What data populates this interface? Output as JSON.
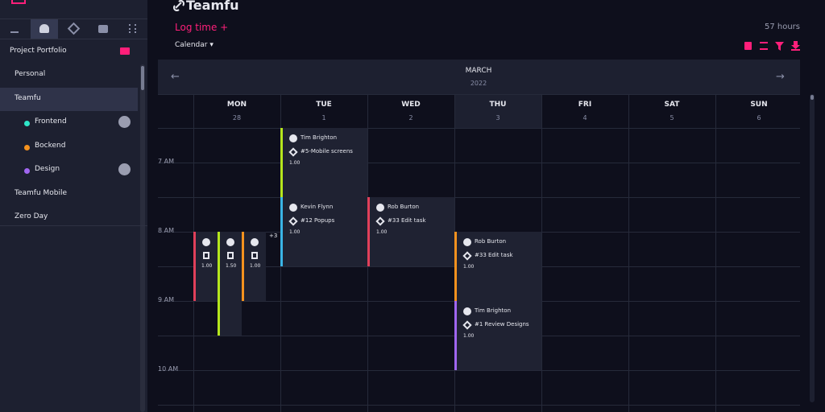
{
  "sidebar": {
    "section_title": "Project Portfolio",
    "projects": [
      {
        "label": "Personal"
      },
      {
        "label": "Teamfu",
        "children": [
          {
            "label": "Frontend",
            "color": "#2ee6c8",
            "avatar": true
          },
          {
            "label": "Bockend",
            "color": "#f5921e",
            "avatar": false
          },
          {
            "label": "Design",
            "color": "#a066f0",
            "avatar": true
          }
        ]
      },
      {
        "label": "Teamfu Mobile"
      },
      {
        "label": "Zero Day"
      }
    ]
  },
  "header": {
    "title": "Teamfu",
    "log_time": "Log time +",
    "total": "57 hours",
    "view": "Calendar"
  },
  "calendar": {
    "month": "MARCH",
    "year": "2022",
    "days": [
      {
        "name": "MON",
        "date": "28"
      },
      {
        "name": "TUE",
        "date": "1"
      },
      {
        "name": "WED",
        "date": "2"
      },
      {
        "name": "THU",
        "date": "3"
      },
      {
        "name": "FRI",
        "date": "4"
      },
      {
        "name": "SAT",
        "date": "5"
      },
      {
        "name": "SUN",
        "date": "6"
      }
    ],
    "hours": [
      "7 AM",
      "8 AM",
      "9 AM",
      "10 AM"
    ],
    "more": "+3",
    "events": [
      {
        "person": "Tim Brighton",
        "task": "#5-Mobile screens",
        "hours": "1.00",
        "color": "#b5e61d"
      },
      {
        "person": "Kevin Flynn",
        "task": "#12 Popups",
        "hours": "1.00",
        "color": "#3ab4e6"
      },
      {
        "person": "Rob Burton",
        "task": "#33 Edit task",
        "hours": "1.00",
        "color": "#e0405a"
      },
      {
        "hours": "1.00",
        "color": "#e0405a"
      },
      {
        "hours": "1.50",
        "color": "#b5e61d"
      },
      {
        "hours": "1.00",
        "color": "#f5921e"
      },
      {
        "person": "Rob Burton",
        "task": "#33 Edit task",
        "hours": "1.00",
        "color": "#f5921e"
      },
      {
        "person": "Tim Brighton",
        "task": "#1 Review Designs",
        "hours": "1.00",
        "color": "#a066f0"
      }
    ]
  }
}
